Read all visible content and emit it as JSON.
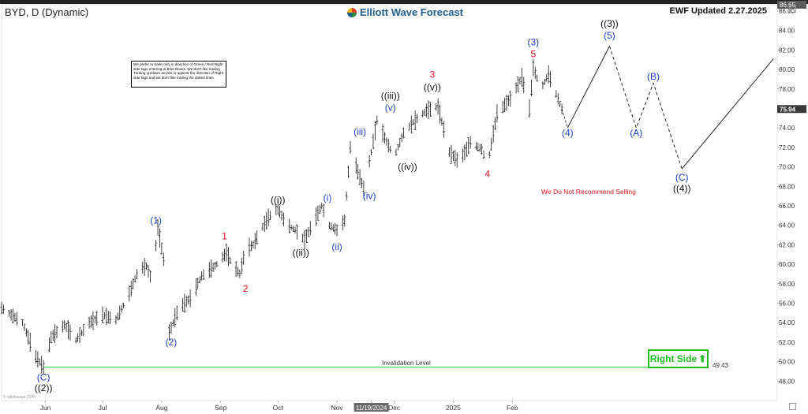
{
  "header": {
    "symbol": "BYD, D (Dynamic)",
    "brand": "Elliott Wave Forecast",
    "updated": "EWF Updated 2.27.2025"
  },
  "note": "We prefer to trade only in direction of Green / Red Right side tags entering at Blue Boxes. We don't like trading Turning up/down arrows or against the direction of Right side tags and we don't like trading the dotted lines.",
  "right_side_label": "Right Side",
  "warning": "We Do Not Recommend Selling",
  "invalidation": {
    "label": "Invalidation Level",
    "value": "49.43"
  },
  "source_note": "© elliottwave 2025",
  "colors": {
    "red": "#e8121e",
    "blue": "#1a3fcf",
    "black": "#111111",
    "green": "#1fbf1f",
    "price_tag": "#3a3a3a"
  },
  "chart_data": {
    "type": "bar",
    "title": "",
    "ylim": [
      46,
      86.65
    ],
    "y_ticks": [
      "48.00",
      "50.00",
      "52.00",
      "54.00",
      "56.00",
      "58.00",
      "60.00",
      "62.00",
      "64.00",
      "66.00",
      "68.00",
      "70.00",
      "72.00",
      "74.00",
      "76.00",
      "78.00",
      "80.00",
      "82.00",
      "84.00",
      "86.00"
    ],
    "y_top_tag": "86.65",
    "last_price_tag": "75.94",
    "x_labels": [
      "Jun",
      "Jul",
      "Aug",
      "Sep",
      "Oct",
      "Nov",
      "11/19/2024",
      "Dec",
      "2025",
      "Feb"
    ],
    "x_range": [
      "2024-05-09",
      "2025-06-20"
    ],
    "x_label_dates": [
      "2024-06-01",
      "2024-07-01",
      "2024-08-01",
      "2024-09-01",
      "2024-10-01",
      "2024-11-01",
      "2024-11-19",
      "2024-12-01",
      "2025-01-01",
      "2025-02-01"
    ],
    "price_path": [
      [
        "2024-05-09",
        55.5
      ],
      [
        "2024-05-20",
        54.0
      ],
      [
        "2024-05-27",
        50.5
      ],
      [
        "2024-05-31",
        49.43
      ],
      [
        "2024-06-04",
        52.5
      ],
      [
        "2024-06-11",
        53.8
      ],
      [
        "2024-06-17",
        52.2
      ],
      [
        "2024-06-24",
        54.0
      ],
      [
        "2024-07-01",
        54.8
      ],
      [
        "2024-07-08",
        54.3
      ],
      [
        "2024-07-14",
        56.5
      ],
      [
        "2024-07-20",
        59.5
      ],
      [
        "2024-07-24",
        59.8
      ],
      [
        "2024-07-27",
        58.2
      ],
      [
        "2024-07-30",
        63.8
      ],
      [
        "2024-08-02",
        60.5
      ],
      [
        "2024-08-05",
        53.0
      ],
      [
        "2024-08-10",
        55.5
      ],
      [
        "2024-08-16",
        56.5
      ],
      [
        "2024-08-22",
        58.8
      ],
      [
        "2024-08-30",
        60.0
      ],
      [
        "2024-09-04",
        61.2
      ],
      [
        "2024-09-07",
        60.0
      ],
      [
        "2024-09-11",
        59.0
      ],
      [
        "2024-09-14",
        61.5
      ],
      [
        "2024-09-18",
        62.0
      ],
      [
        "2024-09-22",
        63.5
      ],
      [
        "2024-09-26",
        64.8
      ],
      [
        "2024-10-01",
        65.8
      ],
      [
        "2024-10-05",
        64.2
      ],
      [
        "2024-10-10",
        63.5
      ],
      [
        "2024-10-15",
        62.5
      ],
      [
        "2024-10-20",
        64.5
      ],
      [
        "2024-10-24",
        66.0
      ],
      [
        "2024-10-28",
        64.0
      ],
      [
        "2024-11-01",
        63.5
      ],
      [
        "2024-11-05",
        64.5
      ],
      [
        "2024-11-08",
        72.0
      ],
      [
        "2024-11-12",
        69.5
      ],
      [
        "2024-11-15",
        67.8
      ],
      [
        "2024-11-19",
        71.5
      ],
      [
        "2024-11-22",
        74.8
      ],
      [
        "2024-11-26",
        73.0
      ],
      [
        "2024-12-01",
        71.0
      ],
      [
        "2024-12-06",
        73.5
      ],
      [
        "2024-12-12",
        74.8
      ],
      [
        "2024-12-18",
        75.8
      ],
      [
        "2024-12-24",
        76.2
      ],
      [
        "2024-12-30",
        71.5
      ],
      [
        "2025-01-04",
        70.5
      ],
      [
        "2025-01-10",
        72.5
      ],
      [
        "2025-01-16",
        71.8
      ],
      [
        "2025-01-19",
        70.2
      ],
      [
        "2025-01-24",
        75.5
      ],
      [
        "2025-01-31",
        77.0
      ],
      [
        "2025-02-06",
        79.2
      ],
      [
        "2025-02-10",
        76.0
      ],
      [
        "2025-02-12",
        80.2
      ],
      [
        "2025-02-16",
        78.0
      ],
      [
        "2025-02-20",
        79.5
      ],
      [
        "2025-02-24",
        77.5
      ],
      [
        "2025-02-27",
        75.94
      ]
    ],
    "projection_solid": [
      [
        "2025-03-02",
        74.0
      ],
      [
        "2025-03-24",
        82.4
      ]
    ],
    "projection_dashed": [
      [
        "2025-03-24",
        82.4
      ],
      [
        "2025-04-07",
        74.0
      ],
      [
        "2025-04-16",
        78.6
      ],
      [
        "2025-05-01",
        69.8
      ]
    ],
    "projection_final": [
      [
        "2025-05-01",
        69.8
      ],
      [
        "2025-06-18",
        81.1
      ]
    ],
    "path_lead_in": [
      [
        "2025-02-27",
        75.94
      ],
      [
        "2025-03-02",
        74.0
      ]
    ],
    "wave_labels": [
      {
        "text": "(C)",
        "date": "2024-05-31",
        "price": 48.4,
        "color": "blue"
      },
      {
        "text": "((2))",
        "date": "2024-05-31",
        "price": 47.3,
        "color": "black"
      },
      {
        "text": "(1)",
        "date": "2024-07-29",
        "price": 64.5,
        "color": "blue"
      },
      {
        "text": "(2)",
        "date": "2024-08-06",
        "price": 52.0,
        "color": "blue"
      },
      {
        "text": "1",
        "date": "2024-09-03",
        "price": 62.9,
        "color": "red"
      },
      {
        "text": "2",
        "date": "2024-09-14",
        "price": 57.5,
        "color": "red"
      },
      {
        "text": "((i))",
        "date": "2024-10-01",
        "price": 66.6,
        "color": "black"
      },
      {
        "text": "((ii))",
        "date": "2024-10-13",
        "price": 61.2,
        "color": "black"
      },
      {
        "text": "(i)",
        "date": "2024-10-27",
        "price": 66.8,
        "color": "blue"
      },
      {
        "text": "(ii)",
        "date": "2024-11-01",
        "price": 61.8,
        "color": "blue"
      },
      {
        "text": "(iii)",
        "date": "2024-11-13",
        "price": 73.6,
        "color": "blue"
      },
      {
        "text": "(iv)",
        "date": "2024-11-18",
        "price": 67.0,
        "color": "blue"
      },
      {
        "text": "((iii))",
        "date": "2024-11-29",
        "price": 77.3,
        "color": "black"
      },
      {
        "text": "(v)",
        "date": "2024-11-29",
        "price": 76.1,
        "color": "blue"
      },
      {
        "text": "((iv))",
        "date": "2024-12-08",
        "price": 70.0,
        "color": "black"
      },
      {
        "text": "3",
        "date": "2024-12-21",
        "price": 79.5,
        "color": "red"
      },
      {
        "text": "((v))",
        "date": "2024-12-21",
        "price": 78.2,
        "color": "black"
      },
      {
        "text": "4",
        "date": "2025-01-19",
        "price": 69.3,
        "color": "red"
      },
      {
        "text": "(3)",
        "date": "2025-02-12",
        "price": 82.8,
        "color": "blue"
      },
      {
        "text": "5",
        "date": "2025-02-12",
        "price": 81.6,
        "color": "red"
      },
      {
        "text": "(4)",
        "date": "2025-03-02",
        "price": 73.5,
        "color": "blue"
      },
      {
        "text": "((3))",
        "date": "2025-03-24",
        "price": 84.7,
        "color": "black"
      },
      {
        "text": "(5)",
        "date": "2025-03-24",
        "price": 83.5,
        "color": "blue"
      },
      {
        "text": "(A)",
        "date": "2025-04-07",
        "price": 73.5,
        "color": "blue"
      },
      {
        "text": "(B)",
        "date": "2025-04-16",
        "price": 79.3,
        "color": "blue"
      },
      {
        "text": "(C)",
        "date": "2025-05-01",
        "price": 68.9,
        "color": "blue"
      },
      {
        "text": "((4))",
        "date": "2025-05-01",
        "price": 67.8,
        "color": "black"
      }
    ]
  }
}
